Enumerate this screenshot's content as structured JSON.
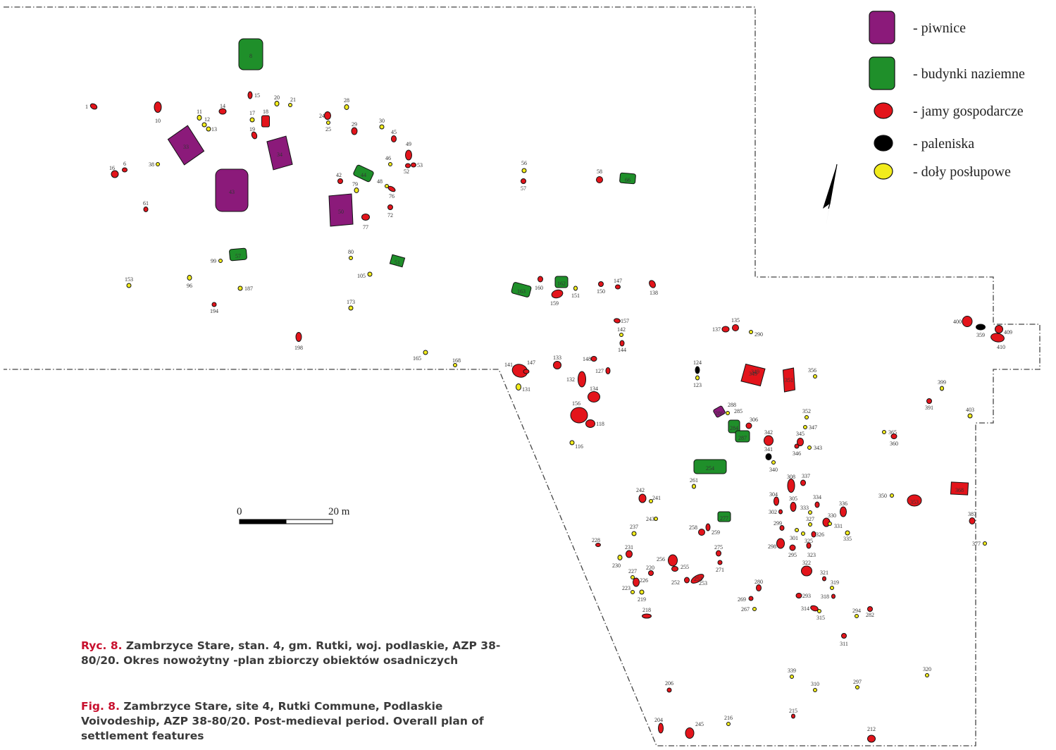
{
  "colors": {
    "piwnice": "#8b1a7a",
    "budynki": "#1f8f2a",
    "jamy": "#e3141b",
    "paleniska": "#000000",
    "doly": "#f2ec1c",
    "caption_tag": "#c8102e"
  },
  "legend": [
    {
      "key": "piwnice",
      "shape": "rect",
      "label": "- piwnice"
    },
    {
      "key": "budynki",
      "shape": "rect",
      "label": "- budynki naziemne"
    },
    {
      "key": "jamy",
      "shape": "circle",
      "label": "- jamy gospodarcze"
    },
    {
      "key": "paleniska",
      "shape": "circle",
      "label": "- paleniska"
    },
    {
      "key": "doly",
      "shape": "circle",
      "label": "- doły posłupowe"
    }
  ],
  "scale_bar": {
    "start_label": "0",
    "end_label": "20 m"
  },
  "north_arrow_icon": "north-arrow-icon",
  "features": [
    {
      "label": "8",
      "type": "budynki"
    },
    {
      "label": "33",
      "type": "piwnice"
    },
    {
      "label": "34",
      "type": "piwnice"
    },
    {
      "label": "43",
      "type": "piwnice"
    },
    {
      "label": "50",
      "type": "piwnice"
    },
    {
      "label": "44",
      "type": "budynki"
    },
    {
      "label": "57",
      "type": "budynki"
    },
    {
      "label": "51",
      "type": "budynki"
    },
    {
      "label": "66",
      "type": "budynki"
    },
    {
      "label": "163",
      "type": "budynki"
    },
    {
      "label": "162",
      "type": "budynki"
    },
    {
      "label": "254",
      "type": "budynki"
    },
    {
      "label": "277",
      "type": "budynki"
    },
    {
      "label": "284",
      "type": "budynki"
    },
    {
      "label": "287",
      "type": "budynki"
    },
    {
      "label": "286",
      "type": "piwnice"
    },
    {
      "label": "1",
      "type": "jamy"
    },
    {
      "label": "10",
      "type": "jamy"
    },
    {
      "label": "14",
      "type": "jamy"
    },
    {
      "label": "15",
      "type": "jamy"
    },
    {
      "label": "16",
      "type": "jamy"
    },
    {
      "label": "6",
      "type": "jamy"
    },
    {
      "label": "18",
      "type": "jamy"
    },
    {
      "label": "19",
      "type": "jamy"
    },
    {
      "label": "24",
      "type": "jamy"
    },
    {
      "label": "29",
      "type": "jamy"
    },
    {
      "label": "45",
      "type": "jamy"
    },
    {
      "label": "49",
      "type": "jamy"
    },
    {
      "label": "52",
      "type": "jamy"
    },
    {
      "label": "53",
      "type": "jamy"
    },
    {
      "label": "42",
      "type": "jamy"
    },
    {
      "label": "76",
      "type": "jamy"
    },
    {
      "label": "72",
      "type": "jamy"
    },
    {
      "label": "77",
      "type": "jamy"
    },
    {
      "label": "61",
      "type": "jamy"
    },
    {
      "label": "194",
      "type": "jamy"
    },
    {
      "label": "198",
      "type": "jamy"
    },
    {
      "label": "57",
      "type": "jamy"
    },
    {
      "label": "58",
      "type": "jamy"
    },
    {
      "label": "160",
      "type": "jamy"
    },
    {
      "label": "159",
      "type": "jamy"
    },
    {
      "label": "150",
      "type": "jamy"
    },
    {
      "label": "147",
      "type": "jamy"
    },
    {
      "label": "138",
      "type": "jamy"
    },
    {
      "label": "157",
      "type": "jamy"
    },
    {
      "label": "144",
      "type": "jamy"
    },
    {
      "label": "148",
      "type": "jamy"
    },
    {
      "label": "127",
      "type": "jamy"
    },
    {
      "label": "141",
      "type": "jamy"
    },
    {
      "label": "147",
      "type": "jamy"
    },
    {
      "label": "133",
      "type": "jamy"
    },
    {
      "label": "132",
      "type": "jamy"
    },
    {
      "label": "134",
      "type": "jamy"
    },
    {
      "label": "156",
      "type": "jamy"
    },
    {
      "label": "118",
      "type": "jamy"
    },
    {
      "label": "137",
      "type": "jamy"
    },
    {
      "label": "135",
      "type": "jamy"
    },
    {
      "label": "349",
      "type": "jamy"
    },
    {
      "label": "351",
      "type": "jamy"
    },
    {
      "label": "306",
      "type": "jamy"
    },
    {
      "label": "342",
      "type": "jamy"
    },
    {
      "label": "345",
      "type": "jamy"
    },
    {
      "label": "346",
      "type": "jamy"
    },
    {
      "label": "360",
      "type": "jamy"
    },
    {
      "label": "391",
      "type": "jamy"
    },
    {
      "label": "400",
      "type": "jamy"
    },
    {
      "label": "409",
      "type": "jamy"
    },
    {
      "label": "410",
      "type": "jamy"
    },
    {
      "label": "308",
      "type": "jamy"
    },
    {
      "label": "337",
      "type": "jamy"
    },
    {
      "label": "304",
      "type": "jamy"
    },
    {
      "label": "305",
      "type": "jamy"
    },
    {
      "label": "302",
      "type": "jamy"
    },
    {
      "label": "334",
      "type": "jamy"
    },
    {
      "label": "336",
      "type": "jamy"
    },
    {
      "label": "330",
      "type": "jamy"
    },
    {
      "label": "299",
      "type": "jamy"
    },
    {
      "label": "298",
      "type": "jamy"
    },
    {
      "label": "295",
      "type": "jamy"
    },
    {
      "label": "326",
      "type": "jamy"
    },
    {
      "label": "323",
      "type": "jamy"
    },
    {
      "label": "322",
      "type": "jamy"
    },
    {
      "label": "321",
      "type": "jamy"
    },
    {
      "label": "318",
      "type": "jamy"
    },
    {
      "label": "293",
      "type": "jamy"
    },
    {
      "label": "314",
      "type": "jamy"
    },
    {
      "label": "282",
      "type": "jamy"
    },
    {
      "label": "311",
      "type": "jamy"
    },
    {
      "label": "353",
      "type": "jamy"
    },
    {
      "label": "368",
      "type": "jamy"
    },
    {
      "label": "387",
      "type": "jamy"
    },
    {
      "label": "242",
      "type": "jamy"
    },
    {
      "label": "258",
      "type": "jamy"
    },
    {
      "label": "259",
      "type": "jamy"
    },
    {
      "label": "228",
      "type": "jamy"
    },
    {
      "label": "231",
      "type": "jamy"
    },
    {
      "label": "256",
      "type": "jamy"
    },
    {
      "label": "255",
      "type": "jamy"
    },
    {
      "label": "252",
      "type": "jamy"
    },
    {
      "label": "253",
      "type": "jamy"
    },
    {
      "label": "275",
      "type": "jamy"
    },
    {
      "label": "271",
      "type": "jamy"
    },
    {
      "label": "220",
      "type": "jamy"
    },
    {
      "label": "226",
      "type": "jamy"
    },
    {
      "label": "280",
      "type": "jamy"
    },
    {
      "label": "269",
      "type": "jamy"
    },
    {
      "label": "218",
      "type": "jamy"
    },
    {
      "label": "206",
      "type": "jamy"
    },
    {
      "label": "204",
      "type": "jamy"
    },
    {
      "label": "245",
      "type": "jamy"
    },
    {
      "label": "215",
      "type": "jamy"
    },
    {
      "label": "212",
      "type": "jamy"
    },
    {
      "label": "349",
      "type": "paleniska"
    },
    {
      "label": "124",
      "type": "paleniska"
    },
    {
      "label": "341",
      "type": "paleniska"
    },
    {
      "label": "359",
      "type": "paleniska"
    },
    {
      "label": "253",
      "type": "paleniska"
    },
    {
      "label": "11",
      "type": "doly"
    },
    {
      "label": "12",
      "type": "doly"
    },
    {
      "label": "13",
      "type": "doly"
    },
    {
      "label": "17",
      "type": "doly"
    },
    {
      "label": "20",
      "type": "doly"
    },
    {
      "label": "21",
      "type": "doly"
    },
    {
      "label": "28",
      "type": "doly"
    },
    {
      "label": "25",
      "type": "doly"
    },
    {
      "label": "30",
      "type": "doly"
    },
    {
      "label": "46",
      "type": "doly"
    },
    {
      "label": "38",
      "type": "doly"
    },
    {
      "label": "48",
      "type": "doly"
    },
    {
      "label": "79",
      "type": "doly"
    },
    {
      "label": "99",
      "type": "doly"
    },
    {
      "label": "153",
      "type": "doly"
    },
    {
      "label": "96",
      "type": "doly"
    },
    {
      "label": "187",
      "type": "doly"
    },
    {
      "label": "80",
      "type": "doly"
    },
    {
      "label": "105",
      "type": "doly"
    },
    {
      "label": "173",
      "type": "doly"
    },
    {
      "label": "165",
      "type": "doly"
    },
    {
      "label": "168",
      "type": "doly"
    },
    {
      "label": "56",
      "type": "doly"
    },
    {
      "label": "151",
      "type": "doly"
    },
    {
      "label": "142",
      "type": "doly"
    },
    {
      "label": "131",
      "type": "doly"
    },
    {
      "label": "116",
      "type": "doly"
    },
    {
      "label": "290",
      "type": "doly"
    },
    {
      "label": "123",
      "type": "doly"
    },
    {
      "label": "288",
      "type": "doly"
    },
    {
      "label": "285",
      "type": "doly"
    },
    {
      "label": "356",
      "type": "doly"
    },
    {
      "label": "352",
      "type": "doly"
    },
    {
      "label": "347",
      "type": "doly"
    },
    {
      "label": "343",
      "type": "doly"
    },
    {
      "label": "340",
      "type": "doly"
    },
    {
      "label": "365",
      "type": "doly"
    },
    {
      "label": "399",
      "type": "doly"
    },
    {
      "label": "403",
      "type": "doly"
    },
    {
      "label": "261",
      "type": "doly"
    },
    {
      "label": "350",
      "type": "doly"
    },
    {
      "label": "377",
      "type": "doly"
    },
    {
      "label": "241",
      "type": "doly"
    },
    {
      "label": "243",
      "type": "doly"
    },
    {
      "label": "237",
      "type": "doly"
    },
    {
      "label": "230",
      "type": "doly"
    },
    {
      "label": "227",
      "type": "doly"
    },
    {
      "label": "223",
      "type": "doly"
    },
    {
      "label": "219",
      "type": "doly"
    },
    {
      "label": "267",
      "type": "doly"
    },
    {
      "label": "333",
      "type": "doly"
    },
    {
      "label": "327",
      "type": "doly"
    },
    {
      "label": "331",
      "type": "doly"
    },
    {
      "label": "301",
      "type": "doly"
    },
    {
      "label": "325",
      "type": "doly"
    },
    {
      "label": "335",
      "type": "doly"
    },
    {
      "label": "319",
      "type": "doly"
    },
    {
      "label": "315",
      "type": "doly"
    },
    {
      "label": "294",
      "type": "doly"
    },
    {
      "label": "339",
      "type": "doly"
    },
    {
      "label": "310",
      "type": "doly"
    },
    {
      "label": "297",
      "type": "doly"
    },
    {
      "label": "320",
      "type": "doly"
    },
    {
      "label": "216",
      "type": "doly"
    }
  ],
  "caption_pl": {
    "tag": "Ryc. 8.",
    "text": " Zambrzyce Stare, stan. 4, gm. Rutki, woj. podlaskie, AZP 38-80/20. Okres nowożytny -plan zbiorczy obiektów osadniczych"
  },
  "caption_en": {
    "tag": "Fig. 8.",
    "text": " Zambrzyce Stare, site 4, Rutki Commune, Podlaskie Voivodeship, AZP 38-80/20. Post-medieval period. Overall plan of settlement features"
  }
}
